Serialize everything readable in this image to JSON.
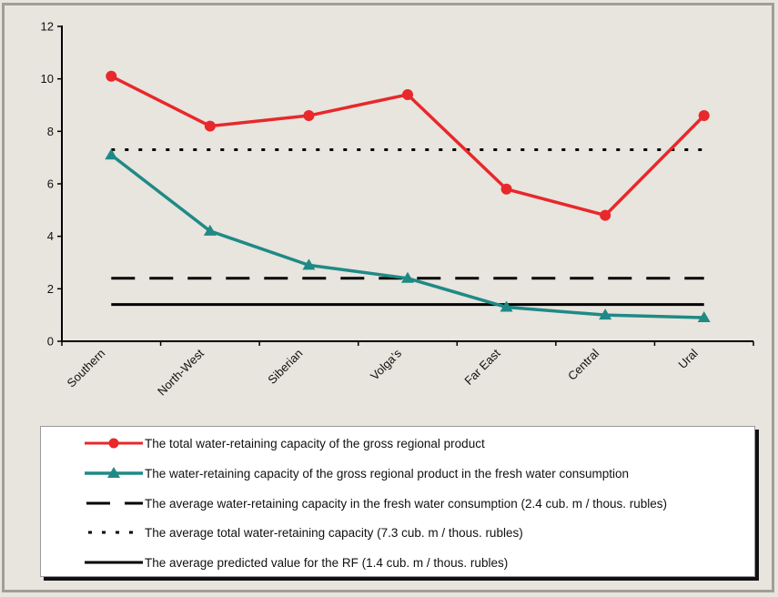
{
  "chart_data": {
    "type": "line",
    "title": "",
    "xlabel": "",
    "ylabel": "",
    "categories": [
      "Southern",
      "North-West",
      "Siberian",
      "Volga’s",
      "Far East",
      "Central",
      "Ural"
    ],
    "ylim": [
      0,
      12
    ],
    "yticks": [
      0,
      2,
      4,
      6,
      8,
      10,
      12
    ],
    "ytick_labels": [
      "0",
      "2",
      "4",
      "6",
      "8",
      "10",
      "12"
    ],
    "grid": false,
    "legend_position": "bottom",
    "series": [
      {
        "name": "The total water-retaining capacity of the gross regional product",
        "values": [
          10.1,
          8.2,
          8.6,
          9.4,
          5.8,
          4.8,
          8.6
        ],
        "color": "#e8282b",
        "marker": "circle",
        "style": "solid"
      },
      {
        "name": "The water-retaining capacity of the gross regional product in the fresh water consumption",
        "values": [
          7.1,
          4.2,
          2.9,
          2.4,
          1.3,
          1.0,
          0.9
        ],
        "color": "#1f8a85",
        "marker": "triangle",
        "style": "solid"
      },
      {
        "name": "The average water-retaining capacity in the fresh water consumption (2.4 cub. m / thous. rubles)",
        "values": [
          2.4,
          2.4,
          2.4,
          2.4,
          2.4,
          2.4,
          2.4
        ],
        "color": "#000000",
        "marker": "none",
        "style": "dashed"
      },
      {
        "name": "The average total water-retaining capacity (7.3 cub. m / thous. rubles)",
        "values": [
          7.3,
          7.3,
          7.3,
          7.3,
          7.3,
          7.3,
          7.3
        ],
        "color": "#000000",
        "marker": "none",
        "style": "dotted"
      },
      {
        "name": "The average predicted value for the RF (1.4 cub. m / thous. rubles)",
        "values": [
          1.4,
          1.4,
          1.4,
          1.4,
          1.4,
          1.4,
          1.4
        ],
        "color": "#000000",
        "marker": "none",
        "style": "solid"
      }
    ]
  }
}
